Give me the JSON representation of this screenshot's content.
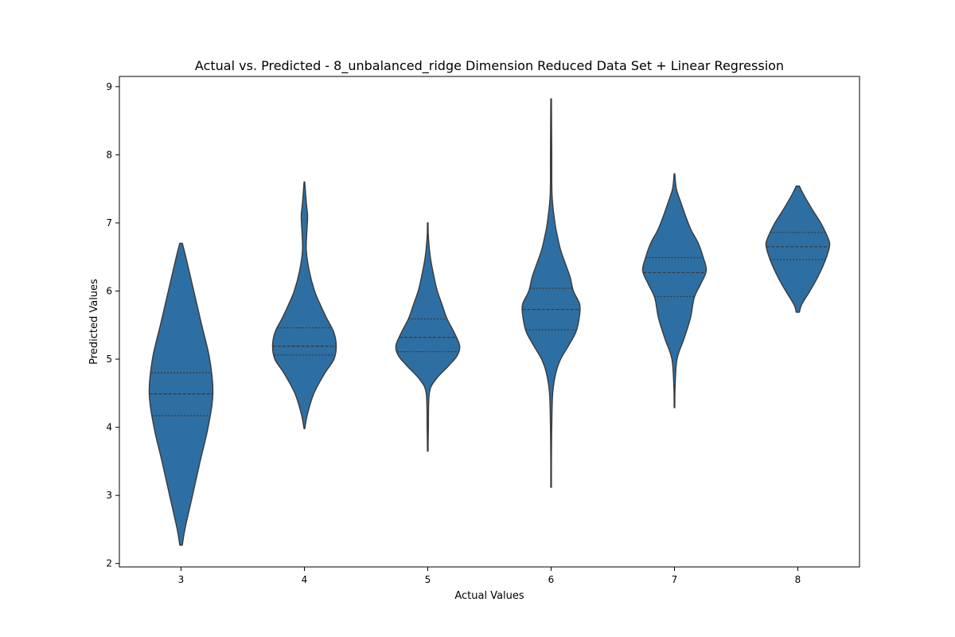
{
  "chart_data": {
    "type": "violin",
    "title": "Actual vs. Predicted - 8_unbalanced_ridge Dimension Reduced Data Set + Linear Regression",
    "xlabel": "Actual Values",
    "ylabel": "Predicted Values",
    "categories": [
      "3",
      "4",
      "5",
      "6",
      "7",
      "8"
    ],
    "ylim": [
      1.95,
      9.15
    ],
    "yticks": [
      2,
      3,
      4,
      5,
      6,
      7,
      8,
      9
    ],
    "grid": false,
    "fill_color": "#2e6fa3",
    "edge_color": "#3a3a3a",
    "violins": [
      {
        "category": "3",
        "min": 2.27,
        "max": 6.7,
        "q1": 4.17,
        "median": 4.49,
        "q3": 4.8,
        "profile": [
          [
            2.27,
            0.04
          ],
          [
            2.5,
            0.12
          ],
          [
            3.0,
            0.36
          ],
          [
            3.5,
            0.6
          ],
          [
            4.0,
            0.85
          ],
          [
            4.5,
            1.0
          ],
          [
            5.0,
            0.9
          ],
          [
            5.5,
            0.65
          ],
          [
            6.0,
            0.4
          ],
          [
            6.5,
            0.15
          ],
          [
            6.7,
            0.04
          ]
        ]
      },
      {
        "category": "4",
        "min": 3.98,
        "max": 7.6,
        "q1": 5.06,
        "median": 5.19,
        "q3": 5.46,
        "profile": [
          [
            3.98,
            0.01
          ],
          [
            4.2,
            0.1
          ],
          [
            4.5,
            0.3
          ],
          [
            4.8,
            0.65
          ],
          [
            5.0,
            0.93
          ],
          [
            5.2,
            1.0
          ],
          [
            5.4,
            0.92
          ],
          [
            5.6,
            0.7
          ],
          [
            5.8,
            0.5
          ],
          [
            6.0,
            0.32
          ],
          [
            6.3,
            0.15
          ],
          [
            6.6,
            0.06
          ],
          [
            6.9,
            0.08
          ],
          [
            7.1,
            0.1
          ],
          [
            7.3,
            0.06
          ],
          [
            7.6,
            0.01
          ]
        ]
      },
      {
        "category": "5",
        "min": 3.65,
        "max": 7.0,
        "q1": 5.11,
        "median": 5.32,
        "q3": 5.59,
        "profile": [
          [
            3.65,
            0.01
          ],
          [
            4.0,
            0.02
          ],
          [
            4.5,
            0.05
          ],
          [
            4.7,
            0.25
          ],
          [
            4.9,
            0.65
          ],
          [
            5.05,
            0.92
          ],
          [
            5.2,
            1.0
          ],
          [
            5.4,
            0.82
          ],
          [
            5.6,
            0.6
          ],
          [
            5.8,
            0.45
          ],
          [
            6.0,
            0.3
          ],
          [
            6.2,
            0.2
          ],
          [
            6.5,
            0.08
          ],
          [
            6.8,
            0.02
          ],
          [
            7.0,
            0.01
          ]
        ]
      },
      {
        "category": "6",
        "min": 3.12,
        "max": 8.82,
        "q1": 5.43,
        "median": 5.73,
        "q3": 6.04,
        "profile": [
          [
            3.12,
            0.01
          ],
          [
            3.5,
            0.01
          ],
          [
            4.0,
            0.02
          ],
          [
            4.5,
            0.05
          ],
          [
            4.8,
            0.15
          ],
          [
            5.0,
            0.3
          ],
          [
            5.2,
            0.55
          ],
          [
            5.4,
            0.78
          ],
          [
            5.6,
            0.88
          ],
          [
            5.8,
            0.9
          ],
          [
            6.0,
            0.7
          ],
          [
            6.2,
            0.6
          ],
          [
            6.4,
            0.45
          ],
          [
            6.6,
            0.3
          ],
          [
            6.8,
            0.2
          ],
          [
            7.0,
            0.12
          ],
          [
            7.4,
            0.03
          ],
          [
            8.0,
            0.02
          ],
          [
            8.82,
            0.01
          ]
        ]
      },
      {
        "category": "7",
        "min": 4.29,
        "max": 7.72,
        "q1": 5.92,
        "median": 6.27,
        "q3": 6.49,
        "profile": [
          [
            4.29,
            0.01
          ],
          [
            4.6,
            0.02
          ],
          [
            5.0,
            0.08
          ],
          [
            5.3,
            0.3
          ],
          [
            5.6,
            0.5
          ],
          [
            5.9,
            0.62
          ],
          [
            6.1,
            0.82
          ],
          [
            6.3,
            1.0
          ],
          [
            6.5,
            0.9
          ],
          [
            6.7,
            0.75
          ],
          [
            6.9,
            0.52
          ],
          [
            7.1,
            0.35
          ],
          [
            7.3,
            0.2
          ],
          [
            7.5,
            0.06
          ],
          [
            7.72,
            0.01
          ]
        ]
      },
      {
        "category": "8",
        "min": 5.69,
        "max": 7.54,
        "q1": 6.46,
        "median": 6.65,
        "q3": 6.86,
        "profile": [
          [
            5.69,
            0.05
          ],
          [
            5.8,
            0.12
          ],
          [
            6.0,
            0.38
          ],
          [
            6.2,
            0.62
          ],
          [
            6.4,
            0.82
          ],
          [
            6.6,
            0.97
          ],
          [
            6.7,
            1.0
          ],
          [
            6.8,
            0.93
          ],
          [
            7.0,
            0.72
          ],
          [
            7.2,
            0.45
          ],
          [
            7.4,
            0.2
          ],
          [
            7.54,
            0.05
          ]
        ]
      }
    ]
  }
}
